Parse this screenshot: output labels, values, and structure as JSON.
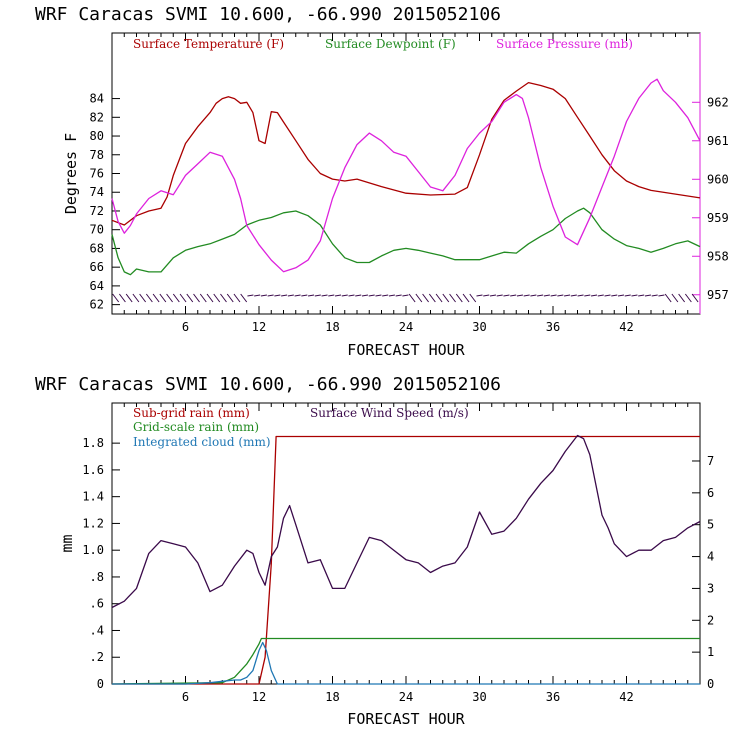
{
  "chart_data": [
    {
      "type": "line",
      "title": "WRF  Caracas SVMI  10.600, -66.990  2015052106",
      "xlabel": "FORECAST HOUR",
      "ylabel": "Degrees F",
      "xlim": [
        0,
        48
      ],
      "ylim": [
        61,
        91
      ],
      "ylim_right": [
        956.5,
        963.8
      ],
      "xticks": [
        6,
        12,
        18,
        24,
        30,
        36,
        42
      ],
      "yticks": [
        62,
        64,
        66,
        68,
        70,
        72,
        74,
        76,
        78,
        80,
        82,
        84
      ],
      "yticks_right": [
        957,
        958,
        959,
        960,
        961,
        962
      ],
      "series": [
        {
          "name": "Surface Temperature (F)",
          "color": "#aa0000",
          "axis": "left",
          "x": [
            0,
            1,
            2,
            3,
            4,
            4.5,
            5,
            5.5,
            6,
            7,
            8,
            8.5,
            9,
            9.5,
            10,
            10.5,
            11,
            11.5,
            12,
            12.5,
            13,
            13.5,
            14,
            15,
            16,
            17,
            18,
            19,
            20,
            22,
            24,
            26,
            28,
            29,
            30,
            31,
            32,
            33,
            34,
            35,
            36,
            37,
            38,
            39,
            40,
            41,
            42,
            43,
            44,
            46,
            48
          ],
          "values": [
            71,
            70.5,
            71.5,
            72,
            72.3,
            73.5,
            75.8,
            77.5,
            79.2,
            81,
            82.5,
            83.5,
            84,
            84.2,
            84,
            83.5,
            83.6,
            82.5,
            79.5,
            79.2,
            82.6,
            82.5,
            81.5,
            79.5,
            77.5,
            76,
            75.4,
            75.2,
            75.4,
            74.6,
            73.9,
            73.7,
            73.8,
            74.5,
            78,
            81.8,
            83.8,
            84.8,
            85.7,
            85.4,
            85,
            84,
            82,
            80,
            78,
            76.3,
            75.2,
            74.6,
            74.2,
            73.8,
            73.4
          ]
        },
        {
          "name": "Surface Dewpoint (F)",
          "color": "#228b22",
          "axis": "left",
          "x": [
            0,
            0.5,
            1,
            1.5,
            2,
            3,
            4,
            5,
            6,
            7,
            8,
            9,
            10,
            11,
            12,
            13,
            14,
            15,
            16,
            17,
            18,
            19,
            20,
            21,
            22,
            23,
            24,
            25,
            26,
            27,
            28,
            30,
            32,
            33,
            34,
            35,
            36,
            37,
            38,
            38.5,
            39,
            40,
            41,
            42,
            43,
            44,
            45,
            46,
            47,
            48
          ],
          "values": [
            69.5,
            67,
            65.5,
            65.2,
            65.8,
            65.5,
            65.5,
            67,
            67.8,
            68.2,
            68.5,
            69,
            69.5,
            70.5,
            71,
            71.3,
            71.8,
            72,
            71.5,
            70.5,
            68.5,
            67,
            66.5,
            66.5,
            67.2,
            67.8,
            68,
            67.8,
            67.5,
            67.2,
            66.8,
            66.8,
            67.6,
            67.5,
            68.5,
            69.3,
            70,
            71.2,
            72,
            72.3,
            71.8,
            70,
            69,
            68.3,
            68,
            67.6,
            68,
            68.5,
            68.8,
            68.2
          ]
        },
        {
          "name": "Surface Pressure (mb)",
          "color": "#dd22dd",
          "axis": "right",
          "x": [
            0,
            0.5,
            1,
            1.5,
            2,
            3,
            4,
            5,
            6,
            7,
            8,
            9,
            10,
            10.5,
            11,
            12,
            13,
            14,
            15,
            16,
            17,
            18,
            19,
            20,
            21,
            22,
            23,
            24,
            25,
            26,
            27,
            28,
            29,
            30,
            31,
            32,
            33,
            33.5,
            34,
            35,
            36,
            37,
            38,
            39,
            40,
            41,
            42,
            43,
            44,
            44.5,
            45,
            46,
            47,
            48
          ],
          "values": [
            959.5,
            958.9,
            958.6,
            958.8,
            959.1,
            959.5,
            959.7,
            959.6,
            960.1,
            960.4,
            960.7,
            960.6,
            960.0,
            959.5,
            958.8,
            958.3,
            957.9,
            957.6,
            957.7,
            957.9,
            958.4,
            959.5,
            960.3,
            960.9,
            961.2,
            961.0,
            960.7,
            960.6,
            960.2,
            959.8,
            959.7,
            960.1,
            960.8,
            961.2,
            961.5,
            962.0,
            962.2,
            962.1,
            961.6,
            960.3,
            959.3,
            958.5,
            958.3,
            959.0,
            959.8,
            960.6,
            961.5,
            962.1,
            962.5,
            962.6,
            962.3,
            962.0,
            961.6,
            961.0
          ]
        }
      ]
    },
    {
      "type": "line",
      "title": "WRF  Caracas SVMI  10.600, -66.990  2015052106",
      "xlabel": "FORECAST HOUR",
      "ylabel": "mm",
      "xlim": [
        0,
        48
      ],
      "ylim": [
        0,
        2.1
      ],
      "ylim_right": [
        0,
        8.82
      ],
      "xticks": [
        6,
        12,
        18,
        24,
        30,
        36,
        42
      ],
      "yticks": [
        0,
        0.2,
        0.4,
        0.6,
        0.8,
        1.0,
        1.2,
        1.4,
        1.6,
        1.8
      ],
      "ytick_labels": [
        "0",
        ".2",
        ".4",
        ".6",
        ".8",
        "1.0",
        "1.2",
        "1.4",
        "1.6",
        "1.8"
      ],
      "yticks_right": [
        0,
        1,
        2,
        3,
        4,
        5,
        6,
        7
      ],
      "series": [
        {
          "name": "Sub-grid rain (mm)",
          "color": "#aa0000",
          "axis": "left",
          "x": [
            0,
            12,
            12.5,
            13,
            13.4,
            48
          ],
          "values": [
            0,
            0,
            0.2,
            0.9,
            1.85,
            1.85
          ]
        },
        {
          "name": "Grid-scale rain (mm)",
          "color": "#228b22",
          "axis": "left",
          "x": [
            0,
            9,
            10,
            11,
            11.5,
            12,
            12.2,
            48
          ],
          "values": [
            0,
            0.01,
            0.05,
            0.15,
            0.22,
            0.3,
            0.34,
            0.34
          ]
        },
        {
          "name": "Integrated cloud (mm)",
          "color": "#1f77b4",
          "axis": "left",
          "x": [
            0,
            6,
            8,
            9,
            10,
            10.5,
            11,
            11.5,
            12,
            12.3,
            12.6,
            13,
            13.5,
            48
          ],
          "values": [
            0,
            0,
            0.01,
            0.02,
            0.03,
            0.03,
            0.05,
            0.1,
            0.25,
            0.31,
            0.25,
            0.1,
            0,
            0
          ]
        },
        {
          "name": "Surface Wind Speed (m/s)",
          "color": "#3a0a4a",
          "axis": "right",
          "x": [
            0,
            1,
            2,
            3,
            4,
            5,
            6,
            7,
            8,
            9,
            10,
            11,
            11.5,
            12,
            12.5,
            13,
            13.5,
            14,
            14.5,
            15,
            16,
            17,
            18,
            19,
            20,
            21,
            22,
            23,
            24,
            25,
            26,
            27,
            28,
            29,
            30,
            31,
            32,
            33,
            34,
            35,
            36,
            37,
            38,
            38.5,
            39,
            40,
            40.5,
            41,
            42,
            43,
            44,
            45,
            46,
            47,
            48
          ],
          "values": [
            2.4,
            2.6,
            3.0,
            4.1,
            4.5,
            4.4,
            4.3,
            3.8,
            2.9,
            3.1,
            3.7,
            4.2,
            4.1,
            3.5,
            3.1,
            4.0,
            4.3,
            5.2,
            5.6,
            5.0,
            3.8,
            3.9,
            3.0,
            3.0,
            3.8,
            4.6,
            4.5,
            4.2,
            3.9,
            3.8,
            3.5,
            3.7,
            3.8,
            4.3,
            5.4,
            4.7,
            4.8,
            5.2,
            5.8,
            6.3,
            6.7,
            7.3,
            7.8,
            7.7,
            7.2,
            5.3,
            4.9,
            4.4,
            4.0,
            4.2,
            4.2,
            4.5,
            4.6,
            4.9,
            5.1
          ]
        }
      ]
    }
  ]
}
